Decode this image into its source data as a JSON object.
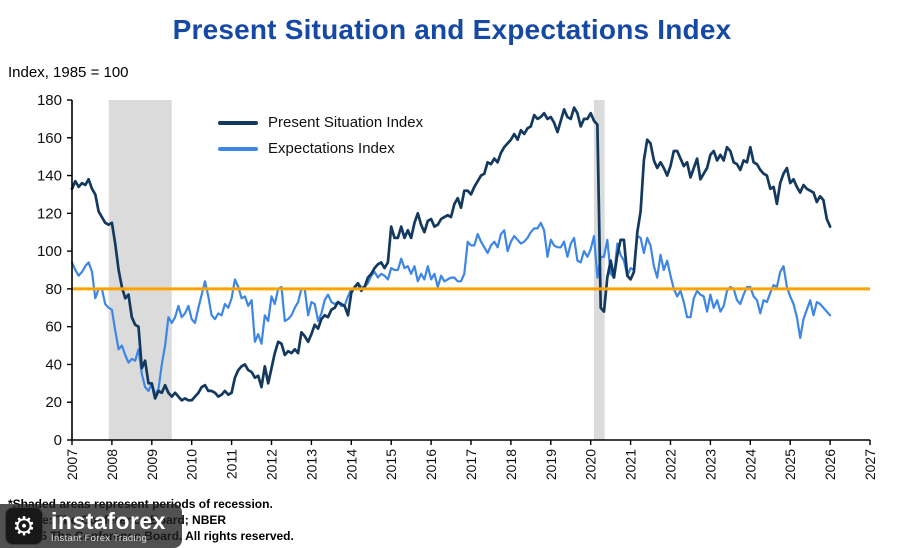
{
  "title": "Present Situation and Expectations Index",
  "subtitle": "Index, 1985 = 100",
  "footnotes": {
    "line1": "*Shaded areas represent periods of recession.",
    "line2": "Source: The Conference Board;  NBER",
    "line3": "© 2025 The Conference Board. All rights reserved."
  },
  "watermark": {
    "name": "instaforex",
    "tagline": "Instant Forex Trading"
  },
  "colors": {
    "title": "#1649A5",
    "present": "#13395E",
    "expectations": "#3E86E6",
    "threshold": "#FFA300",
    "recession": "#DBDBDB",
    "axis": "#000000"
  },
  "chart_data": {
    "type": "line",
    "title": "Present Situation and Expectations Index",
    "ylabel": "Index, 1985 = 100",
    "x_start_year": 2007,
    "points_per_year": 12,
    "x_axis": {
      "min": 2007,
      "max": 2027,
      "tick_interval": 1
    },
    "y_axis": {
      "min": 0,
      "max": 180,
      "tick_interval": 20
    },
    "grid": false,
    "legend_position": "top-left-inside",
    "threshold_line": {
      "y": 80,
      "color": "#FFA300"
    },
    "recession_bands": [
      {
        "from": 2007.92,
        "to": 2009.5
      },
      {
        "from": 2020.08,
        "to": 2020.35
      }
    ],
    "series": [
      {
        "name": "Present Situation Index",
        "color": "#13395E",
        "values": [
          133,
          137,
          134,
          136,
          135,
          138,
          133,
          130,
          121,
          118,
          115,
          114,
          115,
          104,
          90,
          81,
          75,
          77,
          65,
          61,
          60,
          38,
          42,
          30,
          30,
          22,
          26,
          25,
          29,
          25,
          23,
          25,
          23,
          21,
          22,
          21,
          21,
          23,
          25,
          28,
          29,
          26,
          26,
          25,
          23,
          24,
          26,
          24,
          25,
          33,
          37,
          39,
          40,
          37,
          36,
          33,
          34,
          28,
          39,
          30,
          38,
          46,
          52,
          51,
          45,
          47,
          46,
          48,
          46,
          57,
          55,
          52,
          56,
          61,
          59,
          64,
          66,
          65,
          69,
          70,
          73,
          72,
          71,
          66,
          78,
          81,
          83,
          79,
          81,
          86,
          88,
          91,
          93,
          94,
          91,
          94,
          113,
          107,
          107,
          113,
          107,
          111,
          107,
          115,
          120,
          114,
          110,
          116,
          117,
          113,
          114,
          117,
          118,
          119,
          118,
          125,
          128,
          123,
          132,
          132,
          130,
          134,
          137,
          140,
          141,
          147,
          146,
          149,
          147,
          152,
          155,
          157,
          159,
          162,
          159,
          164,
          162,
          165,
          166,
          172,
          170,
          171,
          173,
          170,
          171,
          168,
          163,
          169,
          175,
          171,
          170,
          176,
          173,
          166,
          170,
          170,
          173,
          169,
          167,
          70,
          68,
          86,
          95,
          86,
          98,
          106,
          106,
          87,
          85,
          89,
          110,
          121,
          148,
          159,
          157,
          148,
          144,
          147,
          144,
          140,
          145,
          153,
          153,
          149,
          145,
          147,
          139,
          144,
          149,
          138,
          141,
          144,
          151,
          153,
          148,
          151,
          148,
          155,
          153,
          147,
          146,
          143,
          148,
          147,
          155,
          147,
          146,
          143,
          141,
          140,
          133,
          134,
          125,
          136,
          141,
          144,
          136,
          138,
          134,
          131,
          135,
          133,
          132,
          131,
          126,
          129,
          127,
          117,
          113
        ]
      },
      {
        "name": "Expectations Index",
        "color": "#3E86E6",
        "values": [
          94,
          90,
          87,
          89,
          92,
          94,
          89,
          75,
          80,
          80,
          72,
          70,
          69,
          58,
          48,
          50,
          45,
          41,
          43,
          42,
          48,
          35,
          28,
          26,
          30,
          24,
          27,
          40,
          50,
          65,
          62,
          65,
          71,
          65,
          67,
          71,
          64,
          62,
          70,
          77,
          84,
          76,
          66,
          64,
          67,
          66,
          72,
          70,
          75,
          85,
          81,
          75,
          76,
          71,
          74,
          52,
          56,
          51,
          66,
          63,
          76,
          72,
          80,
          81,
          63,
          64,
          66,
          70,
          73,
          80,
          80,
          66,
          73,
          72,
          63,
          67,
          74,
          77,
          73,
          72,
          73,
          71,
          71,
          76,
          80,
          80,
          83,
          81,
          81,
          83,
          87,
          89,
          86,
          88,
          87,
          85,
          91,
          90,
          90,
          96,
          91,
          92,
          88,
          92,
          84,
          88,
          85,
          92,
          85,
          88,
          81,
          87,
          84,
          85,
          86,
          86,
          84,
          84,
          88,
          105,
          103,
          103,
          109,
          105,
          102,
          99,
          103,
          105,
          102,
          109,
          111,
          100,
          105,
          108,
          106,
          104,
          105,
          107,
          110,
          112,
          112,
          115,
          111,
          97,
          106,
          103,
          102,
          102,
          105,
          97,
          104,
          107,
          95,
          94,
          100,
          97,
          101,
          108,
          86,
          97,
          97,
          106,
          88,
          86,
          104,
          98,
          95,
          87,
          91,
          90,
          108,
          107,
          99,
          107,
          103,
          92,
          86,
          98,
          90,
          95,
          87,
          80,
          76,
          79,
          73,
          65,
          65,
          75,
          79,
          77,
          76,
          68,
          77,
          70,
          74,
          68,
          71,
          79,
          81,
          80,
          74,
          72,
          77,
          81,
          81,
          76,
          74,
          67,
          74,
          73,
          78,
          82,
          81,
          89,
          92,
          81,
          76,
          72,
          65,
          54,
          64,
          69,
          74,
          66,
          73,
          72,
          70,
          68,
          66
        ]
      }
    ]
  }
}
